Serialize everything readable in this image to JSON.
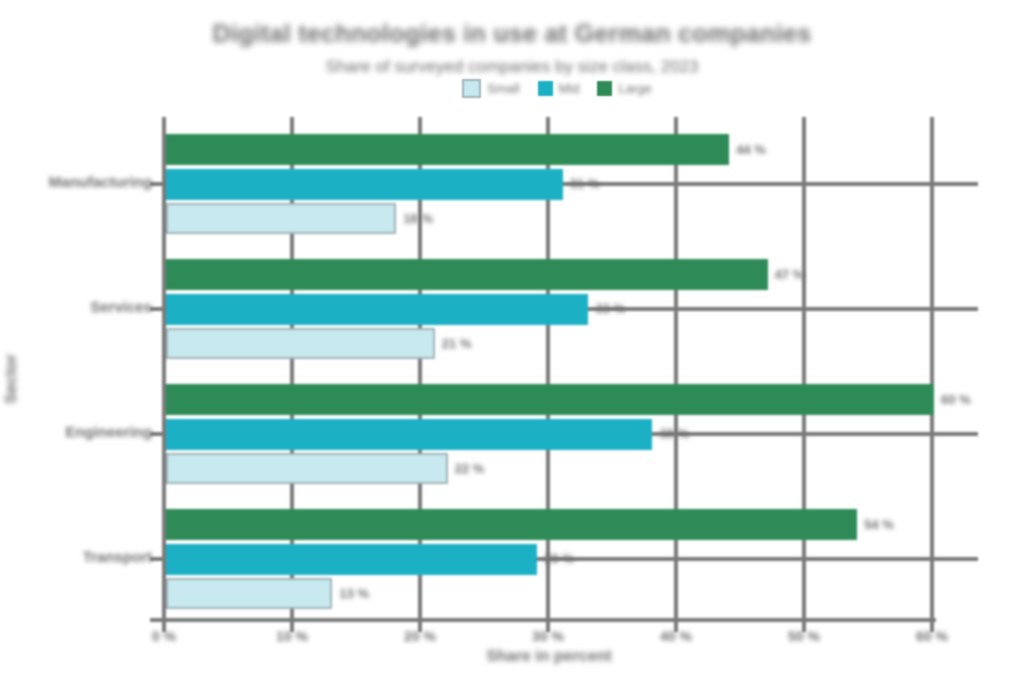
{
  "chart_data": {
    "type": "bar",
    "orientation": "horizontal",
    "title": "Digital technologies in use at German companies",
    "subtitle": "Share of surveyed companies by size class, 2023",
    "categories": [
      "Manufacturing",
      "Services",
      "Engineering",
      "Transport"
    ],
    "series": [
      {
        "name": "Small",
        "color": "#c7e9ef",
        "values": [
          18,
          21,
          22,
          13
        ],
        "labels": [
          "18 %",
          "21 %",
          "22 %",
          "13 %"
        ]
      },
      {
        "name": "Mid",
        "color": "#1cb0c4",
        "values": [
          31,
          33,
          38,
          29
        ],
        "labels": [
          "31 %",
          "33 %",
          "38 %",
          "29 %"
        ]
      },
      {
        "name": "Large",
        "color": "#2e8b57",
        "values": [
          44,
          47,
          60,
          54
        ],
        "labels": [
          "44 %",
          "47 %",
          "60 %",
          "54 %"
        ]
      }
    ],
    "bar_order_top_to_bottom": [
      "Large",
      "Mid",
      "Small"
    ],
    "xlabel": "Share in percent",
    "ylabel": "Sector",
    "xlim": [
      0,
      60
    ],
    "x_ticks": [
      0,
      10,
      20,
      30,
      40,
      50,
      60
    ],
    "x_tick_labels": [
      "0 %",
      "10 %",
      "20 %",
      "30 %",
      "40 %",
      "50 %",
      "60 %"
    ],
    "grid": true,
    "legend_position": "top-center"
  },
  "colors": {
    "background": "#ffffff",
    "grid": "#7a7a7a",
    "text": "#6e6e6e",
    "series_green": "#2e8b57",
    "series_teal": "#1cb0c4",
    "series_light_blue": "#c7e9ef",
    "series_light_blue_border": "#9fb4b9"
  }
}
